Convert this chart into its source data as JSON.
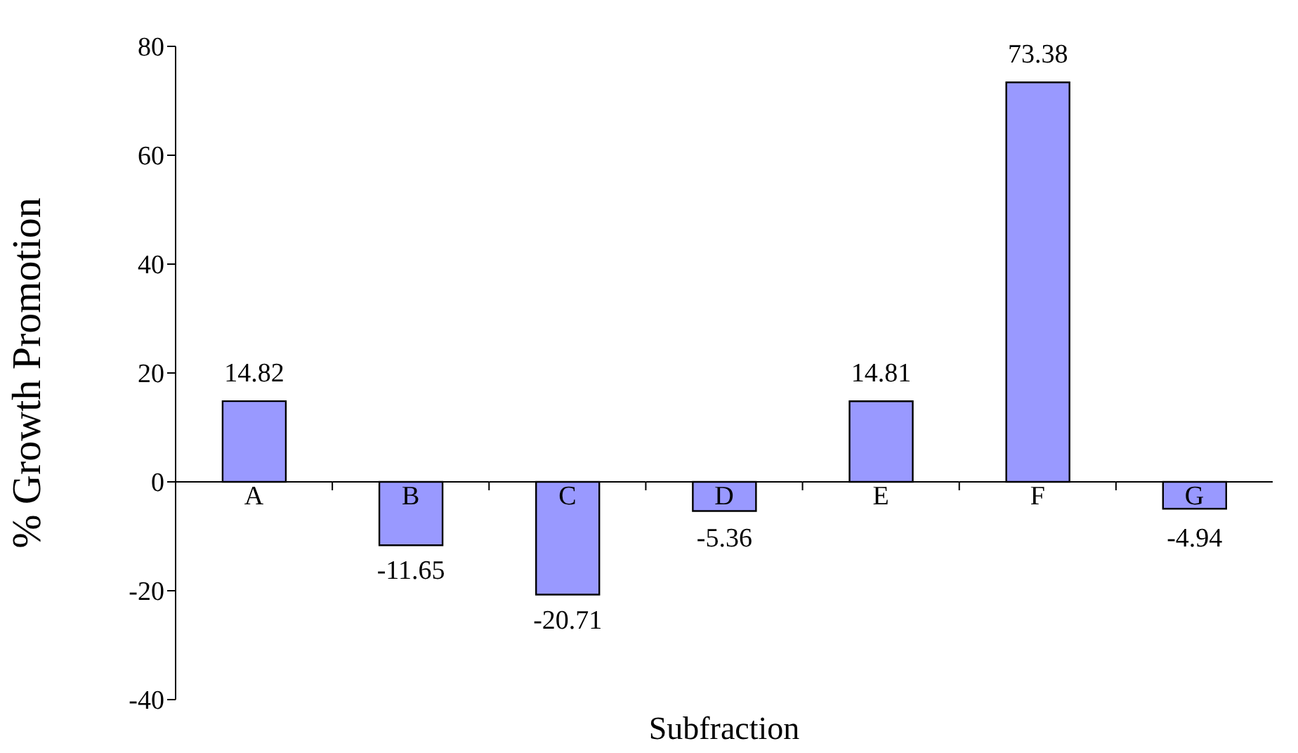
{
  "chart_data": {
    "type": "bar",
    "xlabel": "Subfraction",
    "ylabel": "% Growth Promotion",
    "categories": [
      "A",
      "B",
      "C",
      "D",
      "E",
      "F",
      "G"
    ],
    "values": [
      14.82,
      -11.65,
      -20.71,
      -5.36,
      14.81,
      73.38,
      -4.94
    ],
    "color": "#9999ff",
    "data_labels": true,
    "ylim": [
      -40,
      80
    ],
    "yticks": [
      -40,
      -20,
      0,
      20,
      40,
      60,
      80
    ],
    "grid": false
  }
}
